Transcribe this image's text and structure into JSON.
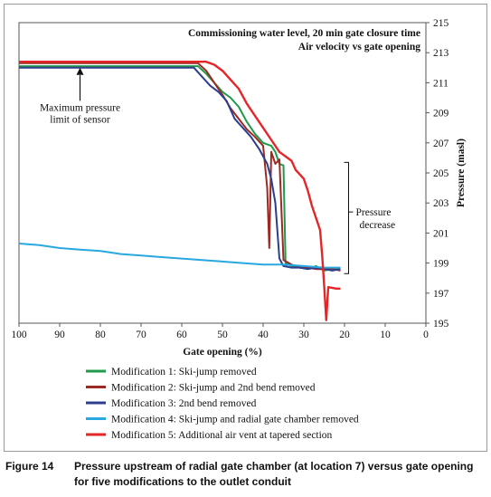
{
  "caption": {
    "label": "Figure 14",
    "text": "Pressure upstream of radial gate chamber (at location 7) versus gate opening for five modifications to the outlet conduit"
  },
  "annotations": {
    "title_line1": "Commissioning water level, 20 min gate closure time",
    "title_line2": "Air velocity vs gate opening",
    "sensor_limit_line1": "Maximum pressure",
    "sensor_limit_line2": "limit of sensor",
    "pressure_decrease_line1": "Pressure",
    "pressure_decrease_line2": "decrease"
  },
  "chart_data": {
    "type": "line",
    "xlabel": "Gate opening (%)",
    "ylabel": "Pressure (masl)",
    "xlim": [
      100,
      0
    ],
    "x_reversed": true,
    "ylim": [
      195,
      215
    ],
    "x_ticks": [
      100,
      90,
      80,
      70,
      60,
      50,
      40,
      30,
      20,
      10,
      0
    ],
    "y_ticks": [
      195,
      197,
      199,
      201,
      203,
      205,
      207,
      209,
      211,
      213,
      215
    ],
    "y_axis_side": "right",
    "grid": false,
    "legend_position": "bottom",
    "series": [
      {
        "name": "Modification 1: Ski-jump removed",
        "color": "#1f9a4b",
        "points": [
          [
            100,
            212.1
          ],
          [
            60,
            212.1
          ],
          [
            56,
            212.1
          ],
          [
            54,
            211.6
          ],
          [
            52,
            211.0
          ],
          [
            50,
            210.4
          ],
          [
            48,
            210.0
          ],
          [
            46,
            209.4
          ],
          [
            44,
            208.4
          ],
          [
            42,
            207.6
          ],
          [
            40,
            207.0
          ],
          [
            38,
            206.8
          ],
          [
            37,
            206.4
          ],
          [
            36,
            205.6
          ],
          [
            35,
            205.5
          ],
          [
            34.5,
            199.0
          ],
          [
            33,
            198.8
          ],
          [
            31,
            198.7
          ],
          [
            29,
            198.6
          ],
          [
            27,
            198.8
          ],
          [
            25,
            198.5
          ],
          [
            23,
            198.6
          ],
          [
            21,
            198.6
          ]
        ]
      },
      {
        "name": "Modification 2: Ski-jump and 2nd bend removed",
        "color": "#9b2a24",
        "points": [
          [
            100,
            212.3
          ],
          [
            60,
            212.3
          ],
          [
            56,
            212.3
          ],
          [
            54,
            211.8
          ],
          [
            52,
            211.0
          ],
          [
            50,
            210.2
          ],
          [
            48,
            209.3
          ],
          [
            46,
            208.6
          ],
          [
            44,
            207.9
          ],
          [
            42,
            207.4
          ],
          [
            40,
            206.8
          ],
          [
            39,
            204.0
          ],
          [
            38.5,
            200.0
          ],
          [
            38,
            206.4
          ],
          [
            37,
            205.6
          ],
          [
            36,
            205.9
          ],
          [
            35,
            199.2
          ],
          [
            33,
            198.9
          ],
          [
            31,
            198.7
          ],
          [
            29,
            198.7
          ],
          [
            27,
            198.6
          ],
          [
            25,
            198.6
          ],
          [
            23,
            198.6
          ],
          [
            21,
            198.5
          ]
        ]
      },
      {
        "name": "Modification 3: 2nd bend removed",
        "color": "#2d3e8f",
        "points": [
          [
            100,
            212.0
          ],
          [
            60,
            212.0
          ],
          [
            57,
            212.0
          ],
          [
            55,
            211.4
          ],
          [
            53,
            210.8
          ],
          [
            51,
            210.4
          ],
          [
            49,
            209.8
          ],
          [
            47,
            208.6
          ],
          [
            45,
            208.0
          ],
          [
            43,
            207.4
          ],
          [
            41,
            206.6
          ],
          [
            39,
            205.6
          ],
          [
            38,
            204.6
          ],
          [
            37,
            203.0
          ],
          [
            36,
            199.3
          ],
          [
            35,
            198.8
          ],
          [
            33,
            198.7
          ],
          [
            31,
            198.7
          ],
          [
            29,
            198.6
          ],
          [
            27,
            198.7
          ],
          [
            25,
            198.6
          ],
          [
            23,
            198.5
          ],
          [
            21,
            198.6
          ]
        ]
      },
      {
        "name": "Modification 4: Ski-jump and radial gate chamber removed",
        "color": "#27a8df",
        "points": [
          [
            100,
            200.3
          ],
          [
            95,
            200.2
          ],
          [
            90,
            200.0
          ],
          [
            85,
            199.9
          ],
          [
            80,
            199.8
          ],
          [
            75,
            199.6
          ],
          [
            70,
            199.5
          ],
          [
            65,
            199.4
          ],
          [
            60,
            199.3
          ],
          [
            55,
            199.2
          ],
          [
            50,
            199.1
          ],
          [
            45,
            199.0
          ],
          [
            40,
            198.9
          ],
          [
            35,
            198.9
          ],
          [
            30,
            198.8
          ],
          [
            25,
            198.7
          ],
          [
            21,
            198.7
          ]
        ]
      },
      {
        "name": "Modification 5: Additional air vent at tapered section",
        "color": "#e52629",
        "points": [
          [
            100,
            212.4
          ],
          [
            60,
            212.4
          ],
          [
            54,
            212.4
          ],
          [
            52,
            212.2
          ],
          [
            50,
            211.8
          ],
          [
            48,
            211.2
          ],
          [
            46,
            210.6
          ],
          [
            44,
            209.6
          ],
          [
            42,
            208.8
          ],
          [
            40,
            208.0
          ],
          [
            38,
            207.2
          ],
          [
            36,
            206.4
          ],
          [
            34,
            206.0
          ],
          [
            33,
            205.8
          ],
          [
            32,
            205.2
          ],
          [
            30,
            204.6
          ],
          [
            29,
            203.8
          ],
          [
            28,
            202.8
          ],
          [
            27,
            202.0
          ],
          [
            26,
            201.2
          ],
          [
            25.5,
            199.5
          ],
          [
            25,
            197.5
          ],
          [
            24.5,
            195.2
          ],
          [
            24,
            197.4
          ],
          [
            22,
            197.3
          ],
          [
            21,
            197.3
          ]
        ]
      }
    ]
  }
}
